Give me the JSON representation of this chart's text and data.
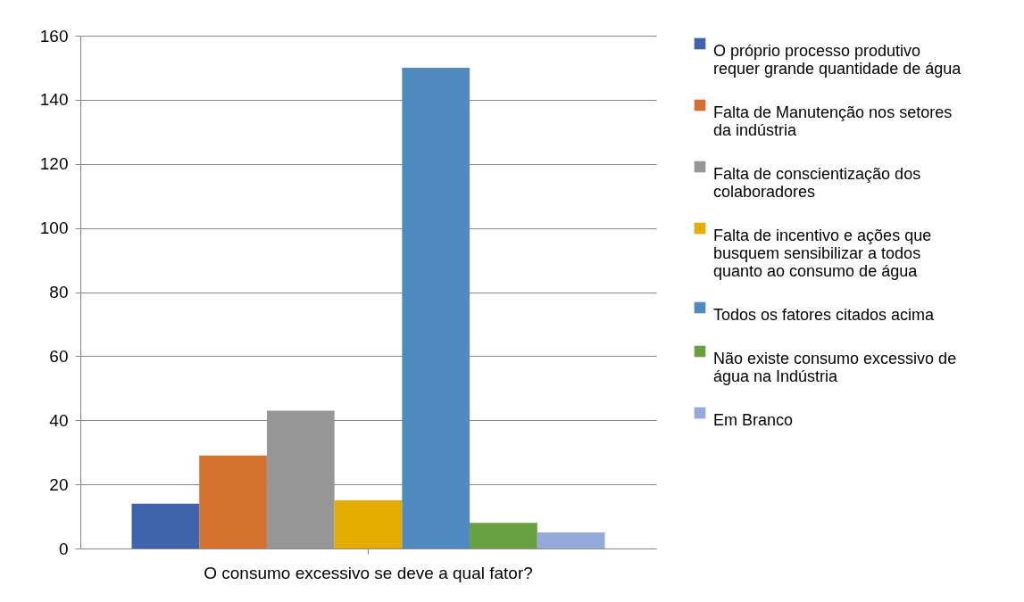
{
  "chart_data": {
    "type": "bar",
    "categories": [
      "O consumo excessivo se deve a qual fator?"
    ],
    "series": [
      {
        "name": "O próprio processo produtivo requer grande quantidade de água",
        "color": "#3f63ad",
        "values": [
          14
        ]
      },
      {
        "name": "Falta de Manutenção nos setores da indústria",
        "color": "#d5702f",
        "values": [
          29
        ]
      },
      {
        "name": "Falta de conscientização dos colaboradores",
        "color": "#969696",
        "values": [
          43
        ]
      },
      {
        "name": "Falta de incentivo e ações que busquem sensibilizar a todos quanto ao consumo de água",
        "color": "#e5ad00",
        "values": [
          15
        ]
      },
      {
        "name": "Todos os fatores citados acima",
        "color": "#4f8bc1",
        "values": [
          150
        ]
      },
      {
        "name": "Não existe consumo excessivo de água na Indústria",
        "color": "#66a03f",
        "values": [
          8
        ]
      },
      {
        "name": "Em Branco",
        "color": "#95a9db",
        "values": [
          5
        ]
      }
    ],
    "ylim": [
      0,
      160
    ],
    "yticks": [
      0,
      20,
      40,
      60,
      80,
      100,
      120,
      140,
      160
    ],
    "grid": "y",
    "legend": "right"
  }
}
